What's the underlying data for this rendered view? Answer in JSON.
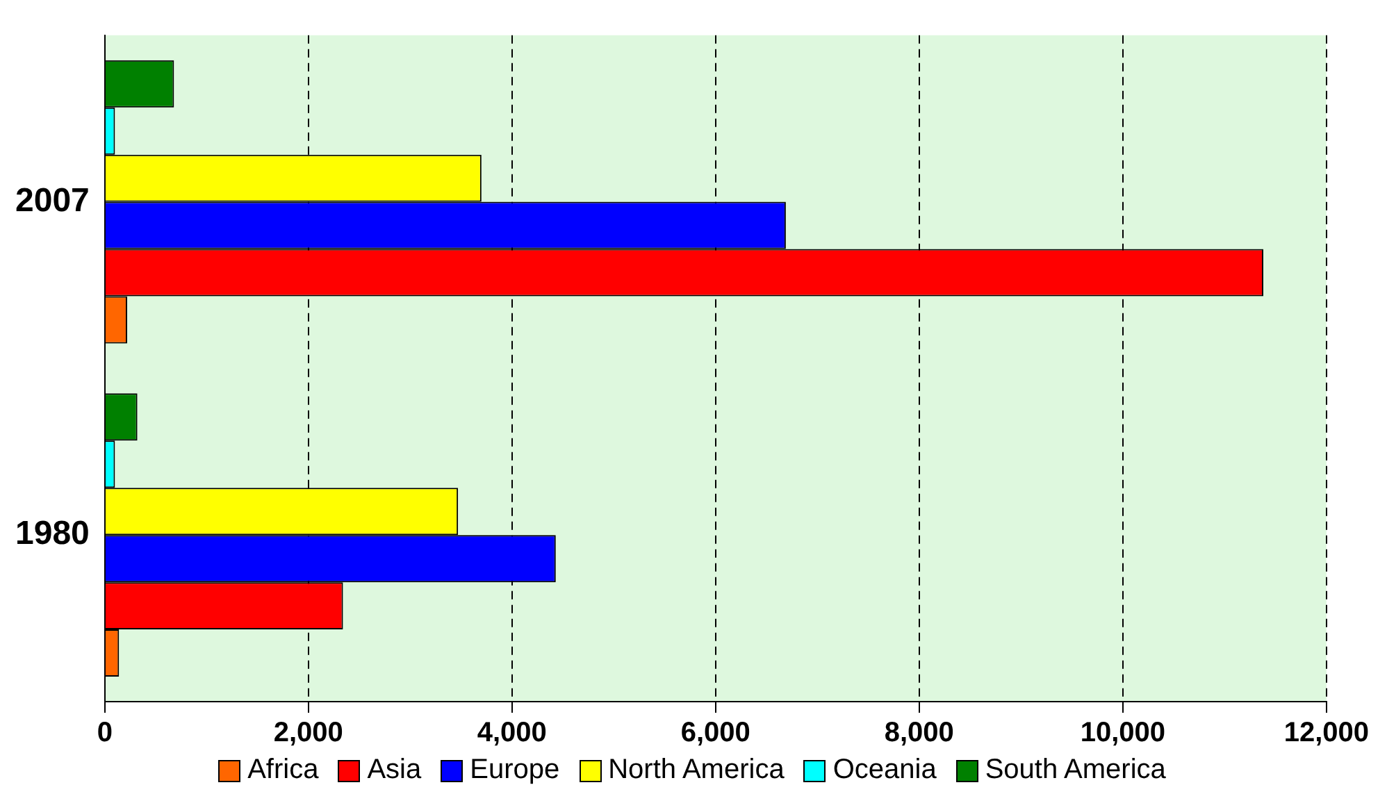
{
  "chart_data": {
    "type": "bar",
    "orientation": "horizontal",
    "categories": [
      "2007",
      "1980"
    ],
    "series": [
      {
        "name": "Africa",
        "color": "#ff6600",
        "values": [
          220,
          140
        ]
      },
      {
        "name": "Asia",
        "color": "#ff0000",
        "values": [
          11380,
          2340
        ]
      },
      {
        "name": "Europe",
        "color": "#0000ff",
        "values": [
          6690,
          4430
        ]
      },
      {
        "name": "North America",
        "color": "#ffff00",
        "values": [
          3700,
          3470
        ]
      },
      {
        "name": "Oceania",
        "color": "#00ffff",
        "values": [
          100,
          100
        ]
      },
      {
        "name": "South America",
        "color": "#008000",
        "values": [
          680,
          320
        ]
      }
    ],
    "xlim": [
      0,
      12000
    ],
    "xticks": [
      {
        "value": 0,
        "label": "0"
      },
      {
        "value": 2000,
        "label": "2,000"
      },
      {
        "value": 4000,
        "label": "4,000"
      },
      {
        "value": 6000,
        "label": "6,000"
      },
      {
        "value": 8000,
        "label": "8,000"
      },
      {
        "value": 10000,
        "label": "10,000"
      },
      {
        "value": 12000,
        "label": "12,000"
      }
    ],
    "grid": "x",
    "legend": "bottom"
  }
}
